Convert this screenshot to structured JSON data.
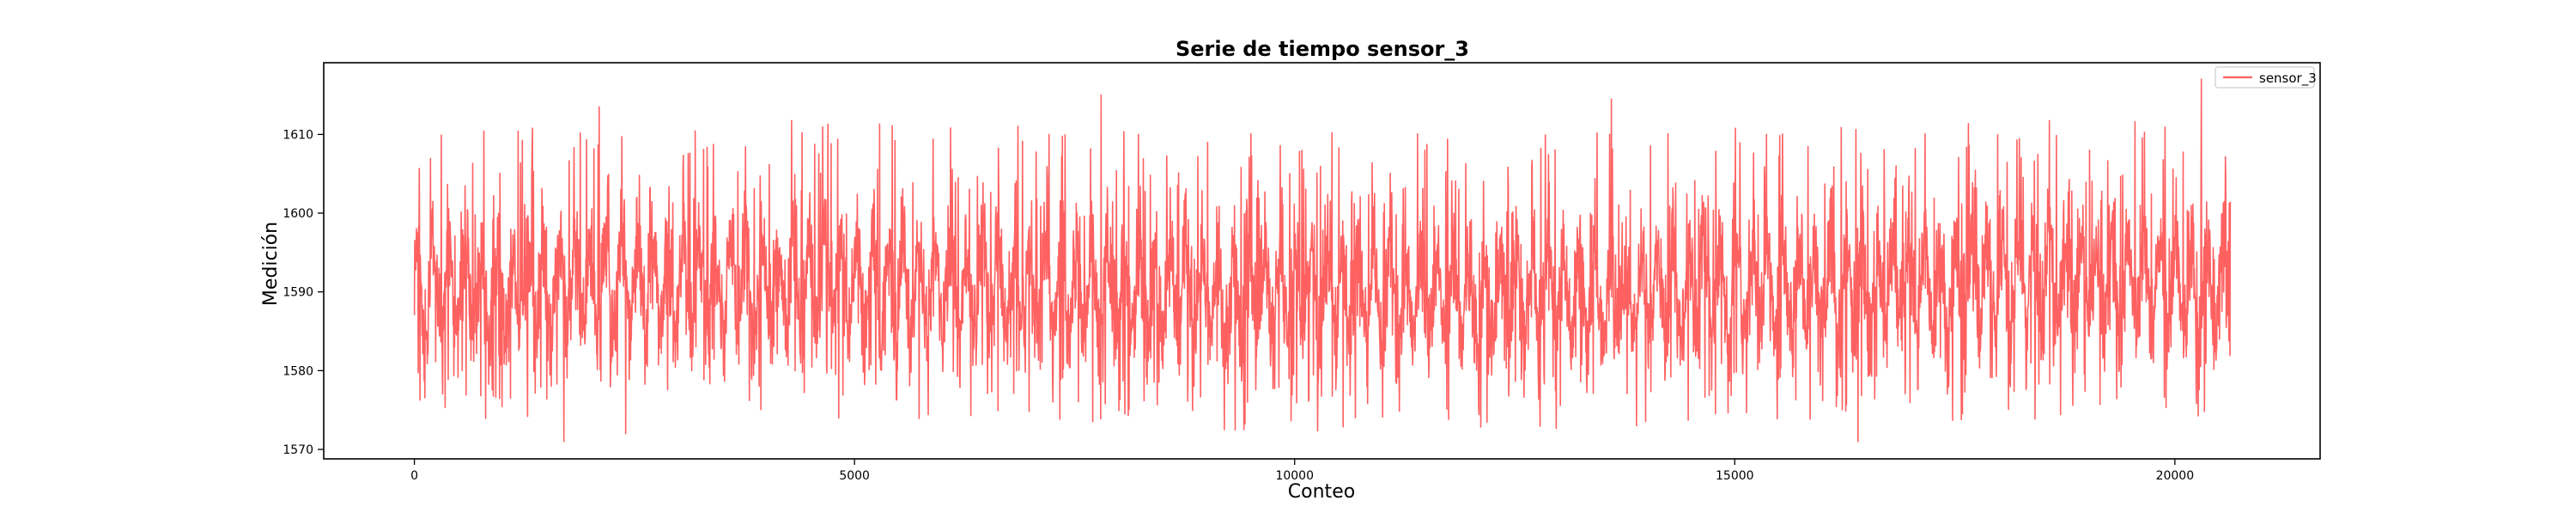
{
  "chart_data": {
    "type": "line",
    "title": "Serie de tiempo sensor_3",
    "xlabel": "Conteo",
    "ylabel": "Medición",
    "xlim": [
      -1030,
      21650
    ],
    "ylim": [
      1568.8,
      1619.1
    ],
    "x_ticks": [
      0,
      5000,
      10000,
      15000,
      20000
    ],
    "x_tick_labels": [
      "0",
      "5000",
      "10000",
      "15000",
      "20000"
    ],
    "y_ticks": [
      1570,
      1580,
      1590,
      1600,
      1610
    ],
    "y_tick_labels": [
      "1570",
      "1580",
      "1590",
      "1600",
      "1610"
    ],
    "grid": false,
    "legend_position": "top-right",
    "series": [
      {
        "name": "sensor_3",
        "color": "#ff6161",
        "x_start": 0,
        "x_end": 20630,
        "n_points": 20631,
        "mean": 1590,
        "range_min": 1571,
        "range_max": 1617,
        "peaks": [
          {
            "x": 1700,
            "y": 1571
          },
          {
            "x": 2100,
            "y": 1613.5
          },
          {
            "x": 2400,
            "y": 1572
          },
          {
            "x": 7800,
            "y": 1615
          },
          {
            "x": 9200,
            "y": 1572.5
          },
          {
            "x": 13600,
            "y": 1614.5
          },
          {
            "x": 16400,
            "y": 1571
          },
          {
            "x": 20300,
            "y": 1617
          }
        ]
      }
    ]
  }
}
